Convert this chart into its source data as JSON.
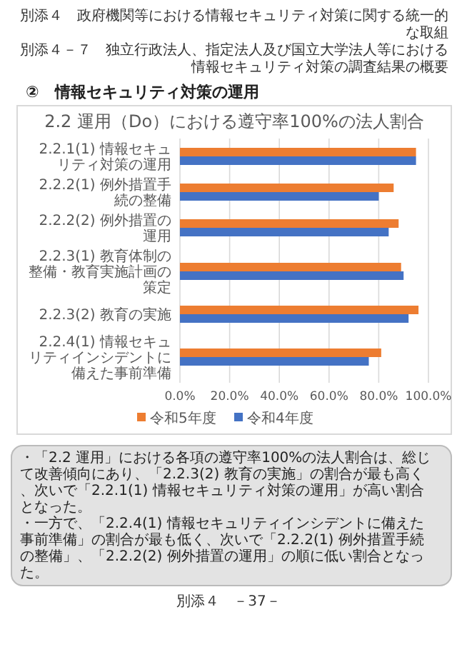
{
  "chart_data": {
    "type": "bar",
    "orientation": "horizontal",
    "title": "2.2 運用（Do）における遵守率100%の法人割合",
    "categories": [
      "2.2.1(1) 情報セキュリティ対策の運用",
      "2.2.2(1) 例外措置手続の整備",
      "2.2.2(2) 例外措置の運用",
      "2.2.3(1) 教育体制の整備・教育実施計画の策定",
      "2.2.3(2) 教育の実施",
      "2.2.4(1) 情報セキュリティインシデントに備えた事前準備"
    ],
    "series": [
      {
        "name": "令和5年度",
        "color": "#ed7d31",
        "values": [
          95,
          86,
          88,
          89,
          96,
          81
        ]
      },
      {
        "name": "令和4年度",
        "color": "#4472c4",
        "values": [
          95,
          80,
          84,
          90,
          92,
          76
        ]
      }
    ],
    "xlim": [
      0,
      100
    ],
    "xticks": [
      {
        "value": 0,
        "label": "0.0%"
      },
      {
        "value": 20,
        "label": "20.0%"
      },
      {
        "value": 40,
        "label": "40.0%"
      },
      {
        "value": 60,
        "label": "60.0%"
      },
      {
        "value": 80,
        "label": "80.0%"
      },
      {
        "value": 100,
        "label": "100.0%"
      }
    ],
    "grid": "x",
    "legend": "bottom",
    "annotations": [
      "別添４　政府機関等における情報セキュリティ対策に関する統一的な取組",
      "別添４－７　独立行政法人、指定法人及び国立大学法人等における情報セキュリティ対策の調査結果の概要",
      "②　情報セキュリティ対策の運用",
      "・「2.2 運用」における各項の遵守率100%の法人割合は、総じて改善傾向にあり、「2.2.3(2) 教育の実施」の割合が最も高く、次いで「2.2.1(1) 情報セキュリティ対策の運用」が高い割合となった。",
      "・一方で、「2.2.4(1) 情報セキュリティインシデントに備えた事前準備」の割合が最も低く、次いで「2.2.2(1) 例外措置手続の整備」、「2.2.2(2) 例外措置の運用」の順に低い割合となった。",
      "別添４　－37－"
    ]
  }
}
